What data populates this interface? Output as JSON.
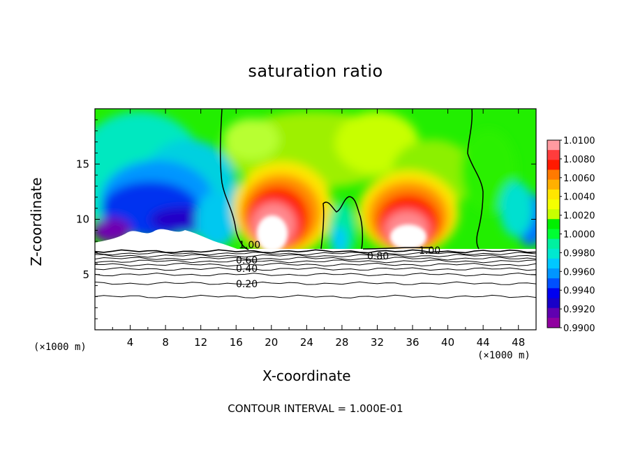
{
  "chart_data": {
    "type": "heatmap",
    "title": "saturation ratio",
    "xlabel": "X-coordinate",
    "ylabel": "Z-coordinate",
    "x_unit": "(×1000 m)",
    "xlim": [
      0,
      50
    ],
    "ylim": [
      0,
      20
    ],
    "x_ticks": [
      "4",
      "8",
      "12",
      "16",
      "20",
      "24",
      "28",
      "32",
      "36",
      "40",
      "44",
      "48"
    ],
    "y_ticks": [
      "5",
      "10",
      "15"
    ],
    "footer": "CONTOUR INTERVAL = 1.000E-01",
    "colorbar": {
      "levels": [
        "1.0100",
        "1.0080",
        "1.0060",
        "1.0040",
        "1.0020",
        "1.0000",
        "0.9980",
        "0.9960",
        "0.9940",
        "0.9920",
        "0.9900"
      ],
      "colors": [
        "#ff9aa0",
        "#ff3c3c",
        "#ff1a00",
        "#ff7a00",
        "#ffb000",
        "#ffe600",
        "#f4ff00",
        "#c8ff00",
        "#00f000",
        "#00ff33",
        "#00f0a0",
        "#00e8d0",
        "#00c8ff",
        "#0096ff",
        "#0050ff",
        "#0000f0",
        "#1800c8",
        "#6000b0",
        "#9000a0"
      ]
    },
    "contour_labels": [
      "1.00",
      "0.60",
      "0.40",
      "0.20",
      "0.80",
      "1.00"
    ],
    "contour_levels_below": [
      0.1,
      0.2,
      0.3,
      0.4,
      0.5,
      0.6,
      0.7,
      0.8,
      0.9,
      1.0
    ]
  }
}
